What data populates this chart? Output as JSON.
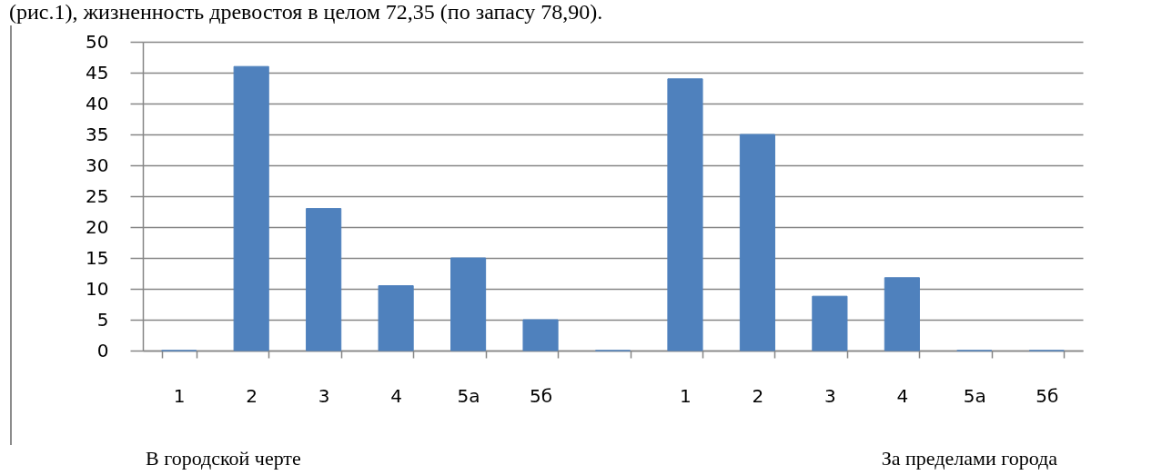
{
  "chart_data": {
    "type": "bar",
    "annotations": [
      "(рис.1), жизненность древостоя в целом 72,35 (по запасу 78,90).",
      "В городской черте",
      "За пределами города"
    ],
    "categories": [
      "1",
      "2",
      "3",
      "4",
      "5а",
      "5б",
      null,
      "1",
      "2",
      "3",
      "4",
      "5а",
      "5б"
    ],
    "values": [
      0,
      46,
      23,
      10.5,
      15,
      5,
      0,
      44,
      35,
      8.8,
      11.8,
      0,
      0
    ],
    "color": "#4f81bd",
    "ylim": [
      0,
      50
    ],
    "yticks": [
      0,
      5,
      10,
      15,
      20,
      25,
      30,
      35,
      40,
      45,
      50
    ],
    "grid": "y"
  }
}
